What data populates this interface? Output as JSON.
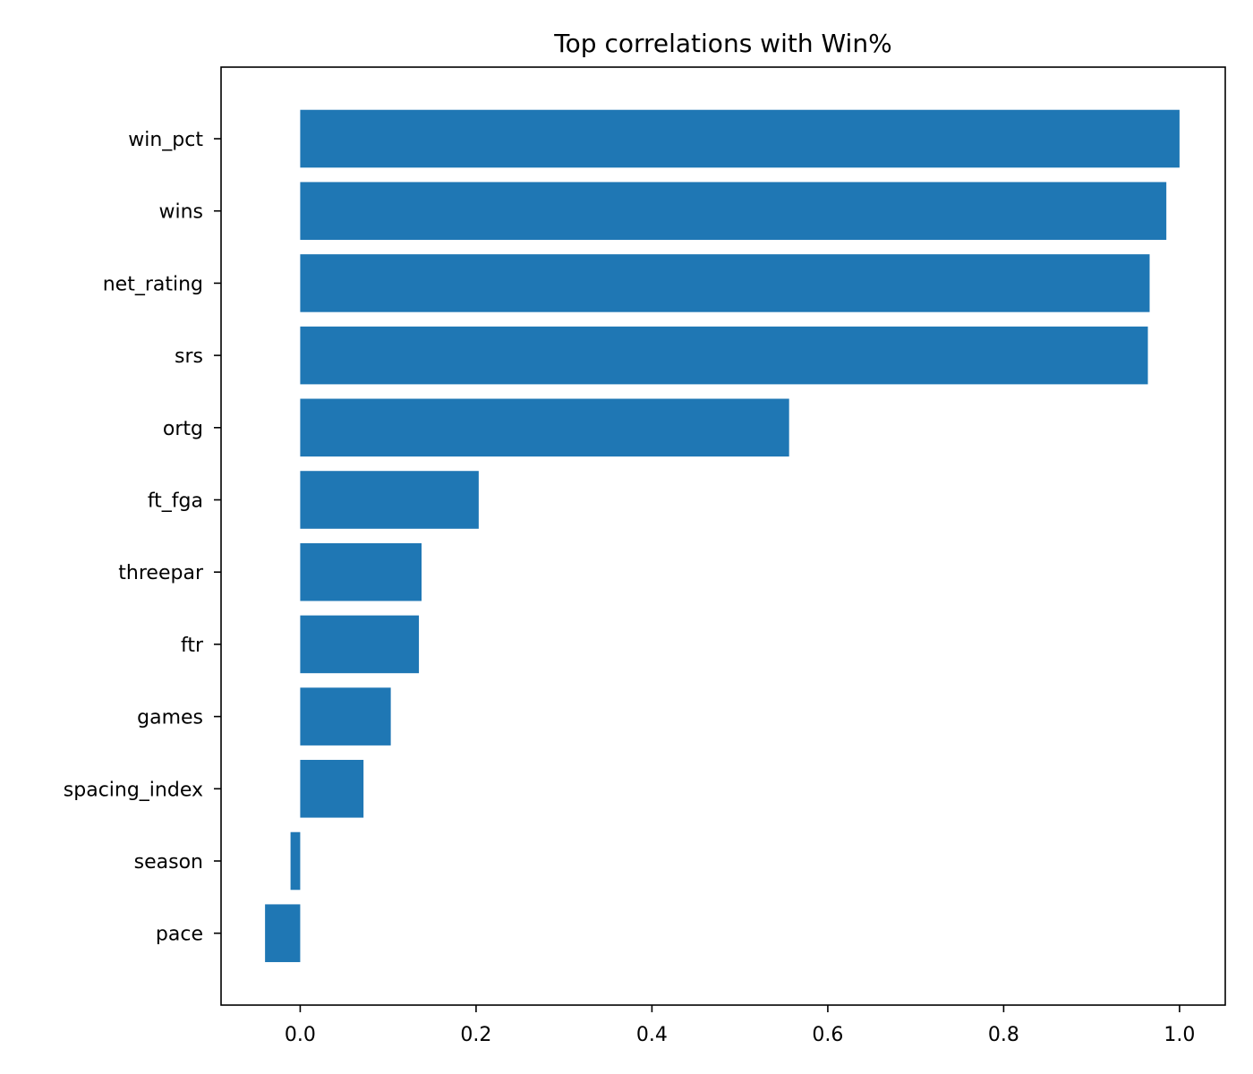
{
  "chart_data": {
    "type": "bar",
    "orientation": "horizontal",
    "title": "Top correlations with Win%",
    "xlabel": "",
    "ylabel": "",
    "categories": [
      "win_pct",
      "wins",
      "net_rating",
      "srs",
      "ortg",
      "ft_fga",
      "threepar",
      "ftr",
      "games",
      "spacing_index",
      "season",
      "pace"
    ],
    "values": [
      1.0,
      0.985,
      0.966,
      0.964,
      0.556,
      0.203,
      0.138,
      0.135,
      0.103,
      0.072,
      -0.011,
      -0.04
    ],
    "xlim": [
      -0.09,
      1.052
    ],
    "xticks": [
      0.0,
      0.2,
      0.4,
      0.6,
      0.8,
      1.0
    ],
    "xtick_labels": [
      "0.0",
      "0.2",
      "0.4",
      "0.6",
      "0.8",
      "1.0"
    ],
    "bar_color": "#1f77b4",
    "grid": false,
    "legend": "none"
  }
}
